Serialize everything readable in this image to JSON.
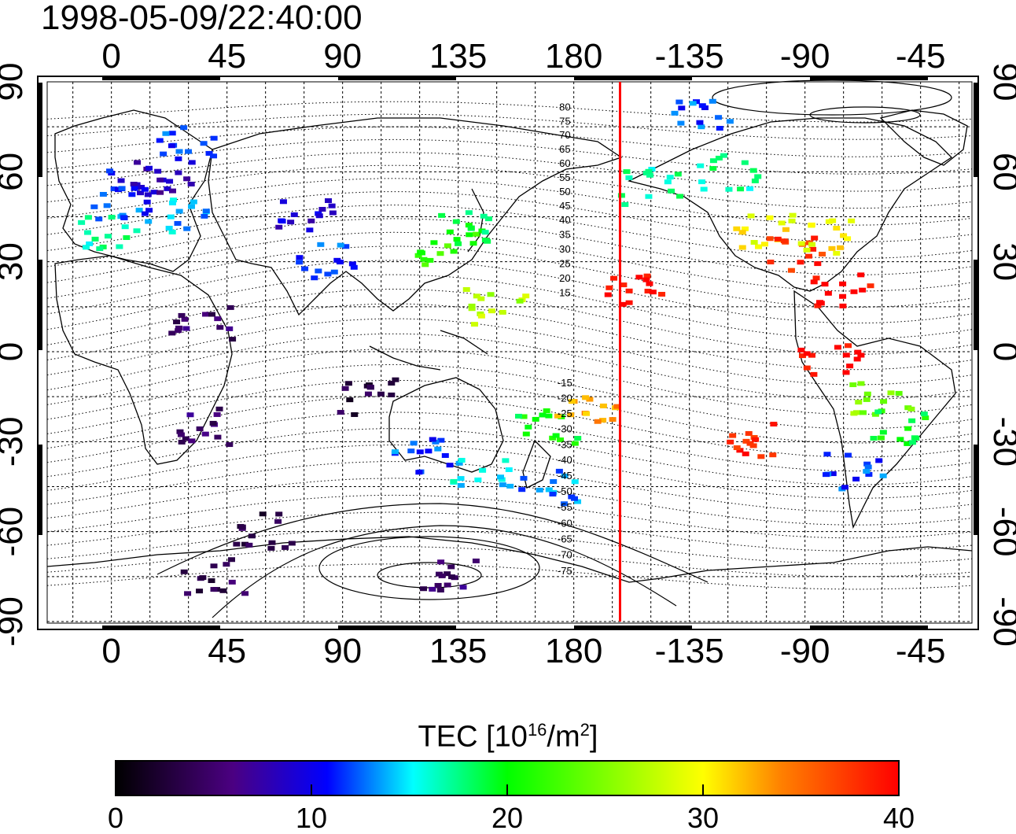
{
  "title": "1998-05-09/22:40:00",
  "axes": {
    "top_ticks": [
      "0",
      "45",
      "90",
      "135",
      "180",
      "-135",
      "-90",
      "-45"
    ],
    "bottom_ticks": [
      "0",
      "45",
      "90",
      "135",
      "180",
      "-135",
      "-90",
      "-45"
    ],
    "left_ticks": [
      "90",
      "60",
      "30",
      "0",
      "-30",
      "-60",
      "-90"
    ],
    "right_ticks": [
      "90",
      "60",
      "30",
      "0",
      "-30",
      "-60",
      "-90"
    ]
  },
  "contour_labels": [
    "80",
    "75",
    "70",
    "65",
    "60",
    "55",
    "50",
    "45",
    "40",
    "35",
    "30",
    "25",
    "20",
    "15",
    "-15",
    "-20",
    "-25",
    "-30",
    "-35",
    "-40",
    "-45",
    "-50",
    "-55",
    "-60",
    "-65",
    "-70",
    "-75"
  ],
  "colorbar": {
    "label_main": "TEC  [10",
    "label_exp1": "16",
    "label_mid": "/m",
    "label_exp2": "2",
    "label_end": "]",
    "ticks": [
      "0",
      "10",
      "20",
      "30",
      "40"
    ],
    "colors": [
      "#000000",
      "#4b0082",
      "#0000ff",
      "#00ffff",
      "#00ff00",
      "#ffff00",
      "#ff8000",
      "#ff0000"
    ]
  },
  "marker_line_color": "#ff0000",
  "map_data": {
    "lon_range": [
      -25,
      335
    ],
    "lat_range": [
      -90,
      90
    ],
    "terminator_lon": 198,
    "tec_patches": [
      {
        "lon": 10,
        "lat": 55,
        "tec": 10
      },
      {
        "lon": 20,
        "lat": 58,
        "tec": 8
      },
      {
        "lon": 5,
        "lat": 50,
        "tec": 12
      },
      {
        "lon": 0,
        "lat": 40,
        "tec": 17
      },
      {
        "lon": 25,
        "lat": 45,
        "tec": 14
      },
      {
        "lon": 30,
        "lat": 70,
        "tec": 12
      },
      {
        "lon": 75,
        "lat": 45,
        "tec": 9
      },
      {
        "lon": 85,
        "lat": 30,
        "tec": 12
      },
      {
        "lon": 130,
        "lat": 35,
        "tec": 22
      },
      {
        "lon": 140,
        "lat": 42,
        "tec": 19
      },
      {
        "lon": 150,
        "lat": 15,
        "tec": 27
      },
      {
        "lon": 35,
        "lat": 10,
        "tec": 5
      },
      {
        "lon": 35,
        "lat": -25,
        "tec": 5
      },
      {
        "lon": 120,
        "lat": -35,
        "tec": 12
      },
      {
        "lon": 145,
        "lat": -40,
        "tec": 15
      },
      {
        "lon": 170,
        "lat": -45,
        "tec": 13
      },
      {
        "lon": 170,
        "lat": -25,
        "tec": 20
      },
      {
        "lon": 185,
        "lat": -18,
        "tec": 33
      },
      {
        "lon": 205,
        "lat": 20,
        "tec": 40
      },
      {
        "lon": 210,
        "lat": 55,
        "tec": 17
      },
      {
        "lon": 240,
        "lat": 60,
        "tec": 17
      },
      {
        "lon": 255,
        "lat": 40,
        "tec": 30
      },
      {
        "lon": 265,
        "lat": 33,
        "tec": 38
      },
      {
        "lon": 280,
        "lat": 38,
        "tec": 30
      },
      {
        "lon": 285,
        "lat": 20,
        "tec": 40
      },
      {
        "lon": 280,
        "lat": -3,
        "tec": 40
      },
      {
        "lon": 300,
        "lat": -15,
        "tec": 25
      },
      {
        "lon": 305,
        "lat": -25,
        "tec": 20
      },
      {
        "lon": 290,
        "lat": -40,
        "tec": 12
      },
      {
        "lon": 250,
        "lat": -30,
        "tec": 38
      },
      {
        "lon": 130,
        "lat": -75,
        "tec": 5
      },
      {
        "lon": 60,
        "lat": -60,
        "tec": 3
      },
      {
        "lon": 40,
        "lat": -75,
        "tec": 4
      },
      {
        "lon": 100,
        "lat": -15,
        "tec": 3
      },
      {
        "lon": 230,
        "lat": 80,
        "tec": 12
      }
    ]
  }
}
